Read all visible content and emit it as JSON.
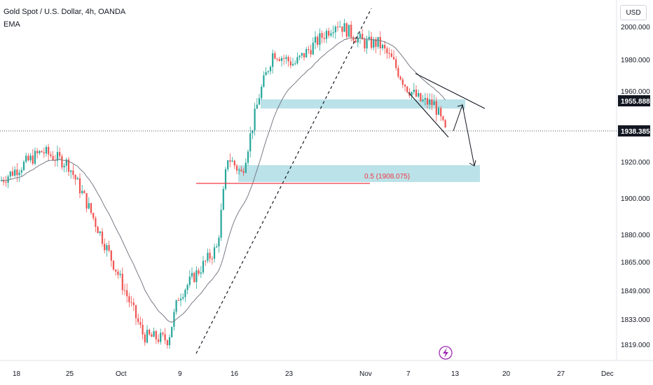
{
  "header": {
    "title": "Gold Spot / U.S. Dollar, 4h, OANDA",
    "indicator": "EMA"
  },
  "price_scale": {
    "currency": "USD",
    "labels": [
      "2000.000",
      "1980.000",
      "1960.000",
      "1920.000",
      "1900.000",
      "1880.000",
      "1865.000",
      "1849.000",
      "1833.000",
      "1819.000"
    ],
    "current_price_label": "1938.385",
    "marker_label": "1955.888"
  },
  "time_scale": {
    "labels": [
      "18",
      "25",
      "Oct",
      "9",
      "16",
      "23",
      "Nov",
      "7",
      "13",
      "20",
      "27",
      "Dec"
    ]
  },
  "annotations": {
    "fib_label": "0.5 (1908.075)"
  },
  "colors": {
    "up_candle": "#26a69a",
    "down_candle": "#ef5350",
    "ema_line": "#787b86",
    "zone_fill": "#b2dfe6",
    "fib_line": "#f23645",
    "marker_bg": "#131722"
  },
  "icons": {
    "bottom_flash": "lightning-icon"
  },
  "chart_data": {
    "type": "candlestick",
    "title": "Gold Spot / U.S. Dollar, 4h, OANDA",
    "timeframe": "4h",
    "x_ticks": [
      "18",
      "25",
      "Oct",
      "9",
      "16",
      "23",
      "Nov",
      "7",
      "13",
      "20",
      "27",
      "Dec"
    ],
    "y_ticks": [
      2000,
      1980,
      1960,
      1920,
      1900,
      1880,
      1865,
      1849,
      1833,
      1819
    ],
    "path_waypoints": [
      {
        "x": "18",
        "y": 1911
      },
      {
        "x": "21",
        "y": 1928
      },
      {
        "x": "25",
        "y": 1921
      },
      {
        "x": "27",
        "y": 1900
      },
      {
        "x": "Oct",
        "y": 1858
      },
      {
        "x": "3",
        "y": 1822
      },
      {
        "x": "6",
        "y": 1820
      },
      {
        "x": "9",
        "y": 1845
      },
      {
        "x": "13",
        "y": 1873
      },
      {
        "x": "14",
        "y": 1925
      },
      {
        "x": "16",
        "y": 1915
      },
      {
        "x": "18",
        "y": 1960
      },
      {
        "x": "20",
        "y": 1985
      },
      {
        "x": "23",
        "y": 1978
      },
      {
        "x": "26",
        "y": 1990
      },
      {
        "x": "28",
        "y": 2002
      },
      {
        "x": "Nov",
        "y": 1990
      },
      {
        "x": "3",
        "y": 1990
      },
      {
        "x": "6",
        "y": 1980
      },
      {
        "x": "7",
        "y": 1965
      },
      {
        "x": "8",
        "y": 1957
      },
      {
        "x": "9",
        "y": 1955
      },
      {
        "x": "10",
        "y": 1938
      }
    ],
    "current_price": 1938.385,
    "marked_level": 1955.888,
    "fibonacci": {
      "ratio": 0.5,
      "price": 1908.075
    },
    "zones": [
      {
        "price_low": 1952,
        "price_high": 1957
      },
      {
        "price_low": 1909,
        "price_high": 1918
      }
    ],
    "ylim": [
      1812,
      2010
    ],
    "grid": false,
    "legend": "none"
  }
}
